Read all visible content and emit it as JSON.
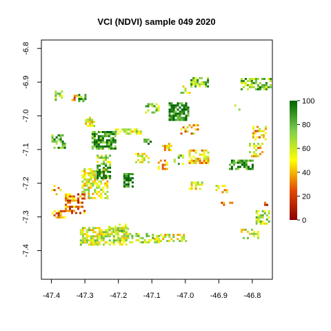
{
  "chart_data": {
    "type": "heatmap",
    "title": "VCI (NDVI) sample 049 2020",
    "xlabel": "",
    "ylabel": "",
    "x_ticks": [
      -47.4,
      -47.3,
      -47.2,
      -47.1,
      -47.0,
      -46.9,
      -46.8
    ],
    "x_tick_labels": [
      "-47.4",
      "-47.3",
      "-47.2",
      "-47.1",
      "-47.0",
      "-46.9",
      "-46.8"
    ],
    "y_ticks": [
      -6.8,
      -6.9,
      -7.0,
      -7.1,
      -7.2,
      -7.3,
      -7.4
    ],
    "y_tick_labels": [
      "-6.8",
      "-6.9",
      "-7.0",
      "-7.1",
      "-7.2",
      "-7.3",
      "-7.4"
    ],
    "xlim": [
      -47.43,
      -46.74
    ],
    "ylim": [
      -7.485,
      -6.775
    ],
    "legend": {
      "placement": "right",
      "range": [
        0,
        100
      ],
      "ticks": [
        0,
        20,
        40,
        60,
        80,
        100
      ],
      "tick_labels": [
        "0",
        "20",
        "40",
        "60",
        "80",
        "100"
      ],
      "colors": [
        "#8b0000",
        "#e34a00",
        "#ffff00",
        "#7ccd4a",
        "#006400"
      ]
    },
    "grid": false,
    "patches": [
      {
        "lon": -47.38,
        "lat": -6.94,
        "w": 0.02,
        "h": 0.03,
        "vci": 70,
        "density": 0.6
      },
      {
        "lon": -47.31,
        "lat": -6.945,
        "w": 0.02,
        "h": 0.02,
        "vci": 80,
        "density": 0.5
      },
      {
        "lon": -47.33,
        "lat": -6.945,
        "w": 0.02,
        "h": 0.015,
        "vci": 30,
        "density": 0.5
      },
      {
        "lon": -47.285,
        "lat": -7.015,
        "w": 0.03,
        "h": 0.025,
        "vci": 55,
        "density": 0.6
      },
      {
        "lon": -47.38,
        "lat": -7.075,
        "w": 0.04,
        "h": 0.04,
        "vci": 85,
        "density": 0.5
      },
      {
        "lon": -47.245,
        "lat": -7.07,
        "w": 0.07,
        "h": 0.05,
        "vci": 88,
        "density": 0.75
      },
      {
        "lon": -47.17,
        "lat": -7.045,
        "w": 0.08,
        "h": 0.015,
        "vci": 60,
        "density": 0.5
      },
      {
        "lon": -47.245,
        "lat": -7.13,
        "w": 0.04,
        "h": 0.03,
        "vci": 65,
        "density": 0.5
      },
      {
        "lon": -47.27,
        "lat": -7.2,
        "w": 0.08,
        "h": 0.09,
        "vci": 55,
        "density": 0.6
      },
      {
        "lon": -47.245,
        "lat": -7.165,
        "w": 0.04,
        "h": 0.04,
        "vci": 90,
        "density": 0.6
      },
      {
        "lon": -47.17,
        "lat": -7.19,
        "w": 0.03,
        "h": 0.04,
        "vci": 95,
        "density": 0.7
      },
      {
        "lon": -47.33,
        "lat": -7.26,
        "w": 0.06,
        "h": 0.06,
        "vci": 30,
        "density": 0.6
      },
      {
        "lon": -47.385,
        "lat": -7.22,
        "w": 0.03,
        "h": 0.03,
        "vci": 40,
        "density": 0.4
      },
      {
        "lon": -47.38,
        "lat": -7.29,
        "w": 0.04,
        "h": 0.02,
        "vci": 30,
        "density": 0.5
      },
      {
        "lon": -47.245,
        "lat": -7.355,
        "w": 0.14,
        "h": 0.05,
        "vci": 60,
        "density": 0.7
      },
      {
        "lon": -47.13,
        "lat": -7.36,
        "w": 0.1,
        "h": 0.025,
        "vci": 65,
        "density": 0.5
      },
      {
        "lon": -47.05,
        "lat": -7.36,
        "w": 0.1,
        "h": 0.02,
        "vci": 55,
        "density": 0.45
      },
      {
        "lon": -47.115,
        "lat": -7.075,
        "w": 0.02,
        "h": 0.015,
        "vci": 92,
        "density": 0.5
      },
      {
        "lon": -47.13,
        "lat": -7.125,
        "w": 0.04,
        "h": 0.03,
        "vci": 55,
        "density": 0.5
      },
      {
        "lon": -47.07,
        "lat": -7.145,
        "w": 0.025,
        "h": 0.03,
        "vci": 45,
        "density": 0.5
      },
      {
        "lon": -47.055,
        "lat": -7.09,
        "w": 0.03,
        "h": 0.02,
        "vci": 50,
        "density": 0.5
      },
      {
        "lon": -47.02,
        "lat": -6.985,
        "w": 0.06,
        "h": 0.05,
        "vci": 95,
        "density": 0.75
      },
      {
        "lon": -47.1,
        "lat": -6.975,
        "w": 0.04,
        "h": 0.025,
        "vci": 70,
        "density": 0.55
      },
      {
        "lon": -47.0,
        "lat": -6.92,
        "w": 0.03,
        "h": 0.02,
        "vci": 60,
        "density": 0.4
      },
      {
        "lon": -46.96,
        "lat": -6.9,
        "w": 0.05,
        "h": 0.03,
        "vci": 75,
        "density": 0.6
      },
      {
        "lon": -46.99,
        "lat": -7.04,
        "w": 0.05,
        "h": 0.03,
        "vci": 45,
        "density": 0.5
      },
      {
        "lon": -46.96,
        "lat": -7.12,
        "w": 0.06,
        "h": 0.04,
        "vci": 45,
        "density": 0.55
      },
      {
        "lon": -47.02,
        "lat": -7.13,
        "w": 0.03,
        "h": 0.03,
        "vci": 70,
        "density": 0.4
      },
      {
        "lon": -46.97,
        "lat": -7.205,
        "w": 0.04,
        "h": 0.02,
        "vci": 55,
        "density": 0.5
      },
      {
        "lon": -46.89,
        "lat": -7.215,
        "w": 0.04,
        "h": 0.02,
        "vci": 50,
        "density": 0.5
      },
      {
        "lon": -46.79,
        "lat": -6.905,
        "w": 0.09,
        "h": 0.035,
        "vci": 75,
        "density": 0.55
      },
      {
        "lon": -46.85,
        "lat": -6.97,
        "w": 0.02,
        "h": 0.02,
        "vci": 70,
        "density": 0.4
      },
      {
        "lon": -46.78,
        "lat": -7.05,
        "w": 0.04,
        "h": 0.04,
        "vci": 45,
        "density": 0.5
      },
      {
        "lon": -46.79,
        "lat": -7.1,
        "w": 0.04,
        "h": 0.04,
        "vci": 50,
        "density": 0.5
      },
      {
        "lon": -46.835,
        "lat": -7.145,
        "w": 0.07,
        "h": 0.03,
        "vci": 90,
        "density": 0.7
      },
      {
        "lon": -46.77,
        "lat": -7.3,
        "w": 0.04,
        "h": 0.04,
        "vci": 65,
        "density": 0.55
      },
      {
        "lon": -46.81,
        "lat": -7.35,
        "w": 0.05,
        "h": 0.03,
        "vci": 60,
        "density": 0.4
      },
      {
        "lon": -46.76,
        "lat": -7.26,
        "w": 0.01,
        "h": 0.01,
        "vci": 10,
        "density": 0.8
      },
      {
        "lon": -46.88,
        "lat": -7.26,
        "w": 0.04,
        "h": 0.01,
        "vci": 40,
        "density": 0.4
      },
      {
        "lon": -47.2,
        "lat": -7.33,
        "w": 0.06,
        "h": 0.02,
        "vci": 70,
        "density": 0.4
      }
    ]
  }
}
